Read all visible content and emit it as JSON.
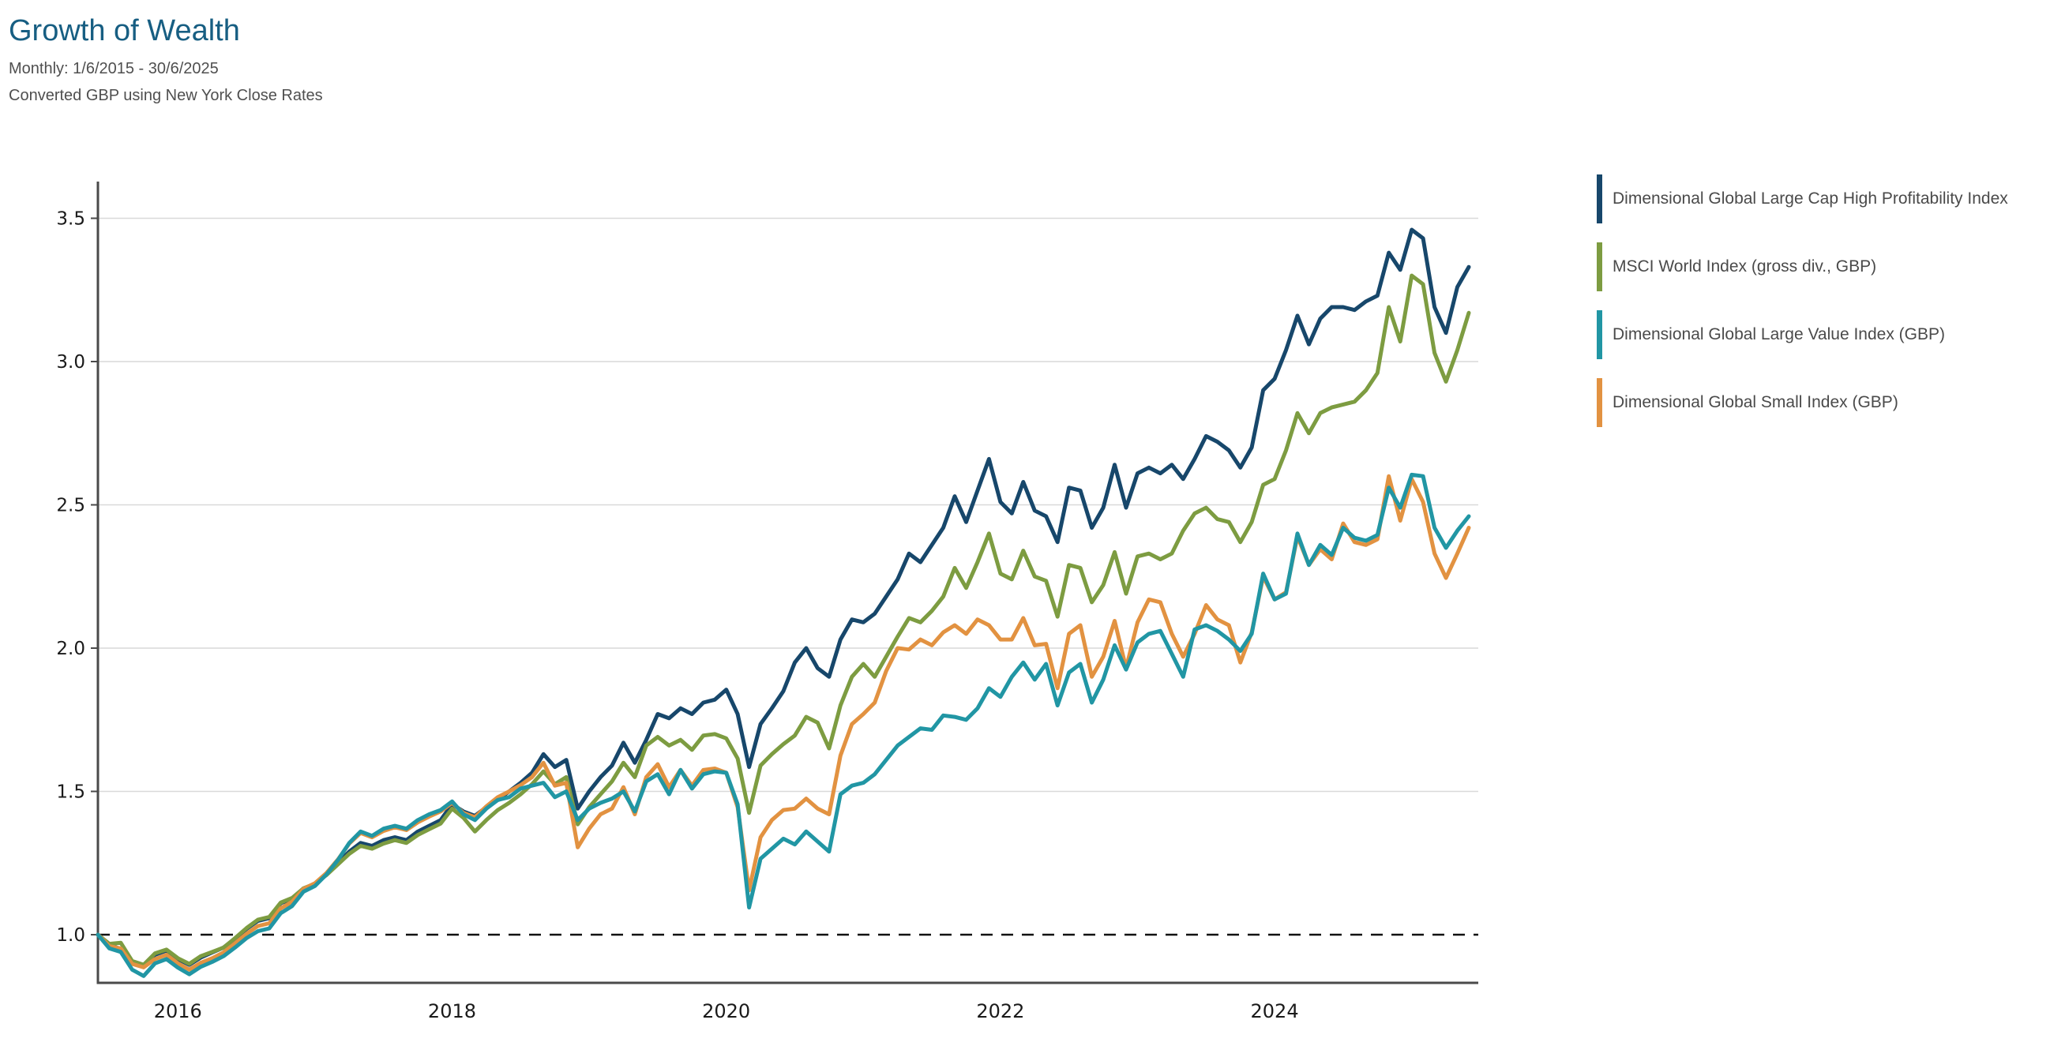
{
  "header": {
    "title": "Growth of Wealth",
    "subtitle": "Monthly: 1/6/2015 - 30/6/2025",
    "note": "Converted GBP using New York Close Rates",
    "title_color": "#175e82"
  },
  "chart_data": {
    "type": "line",
    "title": "Growth of Wealth",
    "xlabel": "",
    "ylabel": "",
    "x_start": "2015-06",
    "x_end": "2025-06",
    "x_interval": "monthly",
    "x_tick_labels": [
      "2016",
      "2018",
      "2020",
      "2022",
      "2024"
    ],
    "x_tick_month_index": [
      7,
      31,
      55,
      79,
      103
    ],
    "y_ticks": [
      1.0,
      1.5,
      2.0,
      2.5,
      3.0,
      3.5
    ],
    "ylim": [
      0.83,
      3.63
    ],
    "baseline_value": 1.0,
    "grid": true,
    "legend_position": "right",
    "axis_color": "#4a4a4a",
    "grid_color": "#d9d9d9",
    "baseline_color": "#111111",
    "series": [
      {
        "name": "Dimensional Global Large Cap High Profitability Index",
        "color": "#17476b",
        "values": [
          1.0,
          0.965,
          0.95,
          0.905,
          0.892,
          0.93,
          0.945,
          0.915,
          0.895,
          0.92,
          0.938,
          0.955,
          0.985,
          1.02,
          1.048,
          1.058,
          1.11,
          1.125,
          1.16,
          1.175,
          1.21,
          1.25,
          1.29,
          1.32,
          1.31,
          1.33,
          1.34,
          1.33,
          1.36,
          1.38,
          1.4,
          1.455,
          1.43,
          1.415,
          1.445,
          1.47,
          1.5,
          1.53,
          1.565,
          1.63,
          1.585,
          1.61,
          1.44,
          1.5,
          1.55,
          1.59,
          1.67,
          1.6,
          1.68,
          1.77,
          1.755,
          1.79,
          1.77,
          1.81,
          1.82,
          1.855,
          1.77,
          1.585,
          1.735,
          1.79,
          1.85,
          1.95,
          2.0,
          1.93,
          1.9,
          2.03,
          2.1,
          2.09,
          2.12,
          2.18,
          2.24,
          2.33,
          2.3,
          2.36,
          2.42,
          2.53,
          2.44,
          2.55,
          2.66,
          2.51,
          2.47,
          2.58,
          2.48,
          2.46,
          2.37,
          2.56,
          2.55,
          2.42,
          2.49,
          2.64,
          2.49,
          2.61,
          2.63,
          2.61,
          2.64,
          2.59,
          2.66,
          2.74,
          2.72,
          2.69,
          2.63,
          2.7,
          2.9,
          2.94,
          3.04,
          3.16,
          3.06,
          3.15,
          3.19,
          3.19,
          3.18,
          3.21,
          3.23,
          3.38,
          3.32,
          3.46,
          3.43,
          3.19,
          3.1,
          3.26,
          3.33
        ]
      },
      {
        "name": "MSCI World Index (gross div., GBP)",
        "color": "#7d9c41",
        "values": [
          1.0,
          0.968,
          0.972,
          0.908,
          0.895,
          0.935,
          0.948,
          0.918,
          0.898,
          0.925,
          0.94,
          0.955,
          0.988,
          1.023,
          1.052,
          1.062,
          1.112,
          1.128,
          1.162,
          1.178,
          1.208,
          1.245,
          1.282,
          1.31,
          1.3,
          1.318,
          1.33,
          1.32,
          1.348,
          1.368,
          1.388,
          1.44,
          1.408,
          1.36,
          1.4,
          1.435,
          1.46,
          1.49,
          1.525,
          1.57,
          1.525,
          1.55,
          1.385,
          1.445,
          1.49,
          1.535,
          1.6,
          1.55,
          1.66,
          1.69,
          1.66,
          1.68,
          1.645,
          1.695,
          1.7,
          1.685,
          1.615,
          1.425,
          1.59,
          1.63,
          1.665,
          1.695,
          1.76,
          1.74,
          1.65,
          1.8,
          1.9,
          1.945,
          1.9,
          1.97,
          2.04,
          2.105,
          2.09,
          2.13,
          2.18,
          2.28,
          2.21,
          2.3,
          2.4,
          2.26,
          2.24,
          2.34,
          2.25,
          2.235,
          2.11,
          2.29,
          2.28,
          2.16,
          2.22,
          2.335,
          2.19,
          2.32,
          2.33,
          2.31,
          2.33,
          2.41,
          2.47,
          2.49,
          2.45,
          2.44,
          2.37,
          2.44,
          2.57,
          2.59,
          2.69,
          2.82,
          2.75,
          2.82,
          2.84,
          2.85,
          2.86,
          2.9,
          2.96,
          3.19,
          3.07,
          3.3,
          3.27,
          3.03,
          2.93,
          3.04,
          3.17
        ]
      },
      {
        "name": "Dimensional Global Large Value Index (GBP)",
        "color": "#2196a4",
        "values": [
          1.0,
          0.952,
          0.94,
          0.878,
          0.856,
          0.9,
          0.915,
          0.885,
          0.862,
          0.888,
          0.905,
          0.925,
          0.955,
          0.988,
          1.012,
          1.022,
          1.075,
          1.1,
          1.15,
          1.17,
          1.21,
          1.26,
          1.32,
          1.36,
          1.345,
          1.37,
          1.38,
          1.37,
          1.4,
          1.42,
          1.435,
          1.465,
          1.42,
          1.4,
          1.44,
          1.47,
          1.48,
          1.51,
          1.52,
          1.53,
          1.48,
          1.5,
          1.4,
          1.44,
          1.46,
          1.475,
          1.5,
          1.43,
          1.535,
          1.56,
          1.49,
          1.575,
          1.51,
          1.56,
          1.57,
          1.565,
          1.455,
          1.095,
          1.265,
          1.3,
          1.335,
          1.315,
          1.36,
          1.325,
          1.29,
          1.49,
          1.52,
          1.53,
          1.56,
          1.61,
          1.66,
          1.69,
          1.72,
          1.715,
          1.765,
          1.76,
          1.75,
          1.79,
          1.86,
          1.83,
          1.9,
          1.95,
          1.89,
          1.945,
          1.8,
          1.915,
          1.945,
          1.81,
          1.89,
          2.01,
          1.925,
          2.02,
          2.05,
          2.06,
          1.98,
          1.9,
          2.065,
          2.08,
          2.06,
          2.03,
          1.99,
          2.05,
          2.26,
          2.17,
          2.19,
          2.4,
          2.29,
          2.36,
          2.325,
          2.42,
          2.385,
          2.375,
          2.395,
          2.56,
          2.49,
          2.605,
          2.6,
          2.42,
          2.35,
          2.41,
          2.46
        ]
      },
      {
        "name": "Dimensional Global Small Index (GBP)",
        "color": "#e29241",
        "values": [
          1.0,
          0.96,
          0.952,
          0.898,
          0.886,
          0.915,
          0.93,
          0.9,
          0.878,
          0.902,
          0.918,
          0.938,
          0.97,
          1.003,
          1.03,
          1.04,
          1.092,
          1.115,
          1.16,
          1.18,
          1.215,
          1.262,
          1.318,
          1.355,
          1.34,
          1.362,
          1.375,
          1.365,
          1.392,
          1.412,
          1.43,
          1.46,
          1.425,
          1.41,
          1.448,
          1.48,
          1.5,
          1.522,
          1.55,
          1.6,
          1.52,
          1.53,
          1.305,
          1.37,
          1.42,
          1.44,
          1.515,
          1.42,
          1.55,
          1.595,
          1.515,
          1.575,
          1.52,
          1.575,
          1.58,
          1.565,
          1.445,
          1.155,
          1.34,
          1.4,
          1.435,
          1.44,
          1.475,
          1.44,
          1.42,
          1.625,
          1.735,
          1.77,
          1.81,
          1.92,
          2.0,
          1.995,
          2.03,
          2.01,
          2.055,
          2.08,
          2.05,
          2.1,
          2.08,
          2.03,
          2.03,
          2.105,
          2.01,
          2.015,
          1.86,
          2.05,
          2.08,
          1.9,
          1.97,
          2.095,
          1.93,
          2.09,
          2.17,
          2.16,
          2.05,
          1.97,
          2.05,
          2.15,
          2.1,
          2.08,
          1.95,
          2.055,
          2.25,
          2.17,
          2.195,
          2.39,
          2.29,
          2.345,
          2.31,
          2.435,
          2.37,
          2.36,
          2.38,
          2.6,
          2.445,
          2.59,
          2.51,
          2.33,
          2.245,
          2.33,
          2.42
        ]
      }
    ]
  }
}
